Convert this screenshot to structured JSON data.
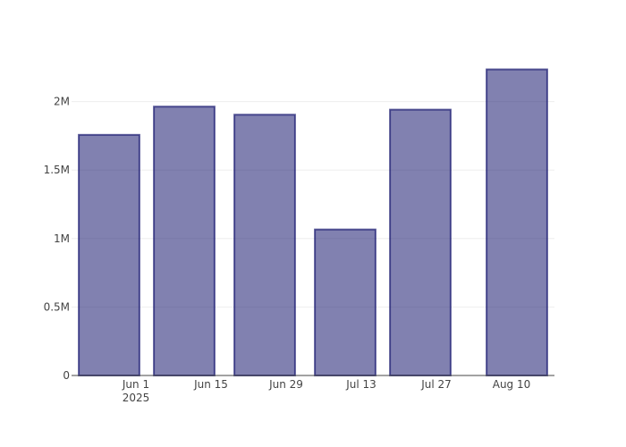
{
  "chart_data": {
    "type": "bar",
    "title": "",
    "xlabel": "",
    "ylabel": "",
    "x": [
      "2025-05-27",
      "2025-06-10",
      "2025-06-25",
      "2025-07-10",
      "2025-07-24",
      "2025-08-11"
    ],
    "values": [
      1757000,
      1963000,
      1904000,
      1066000,
      1941000,
      2235000
    ],
    "xlim": [
      "2025-05-20",
      "2025-08-18"
    ],
    "ylim": [
      0,
      2350000
    ],
    "x_ticks": [
      {
        "date": "2025-06-01",
        "label": "Jun 1",
        "sublabel": "2025"
      },
      {
        "date": "2025-06-15",
        "label": "Jun 15"
      },
      {
        "date": "2025-06-29",
        "label": "Jun 29"
      },
      {
        "date": "2025-07-13",
        "label": "Jul 13"
      },
      {
        "date": "2025-07-27",
        "label": "Jul 27"
      },
      {
        "date": "2025-08-10",
        "label": "Aug 10"
      }
    ],
    "y_ticks": [
      {
        "value": 0,
        "label": "0"
      },
      {
        "value": 500000,
        "label": "0.5M"
      },
      {
        "value": 1000000,
        "label": "1M"
      },
      {
        "value": 1500000,
        "label": "1.5M"
      },
      {
        "value": 2000000,
        "label": "2M"
      }
    ],
    "grid": {
      "x": false,
      "y": true
    },
    "colors": {
      "bar_fill": "#191970",
      "bar_line": "#191970",
      "grid": "#eeeeee",
      "axis": "#444444"
    }
  }
}
